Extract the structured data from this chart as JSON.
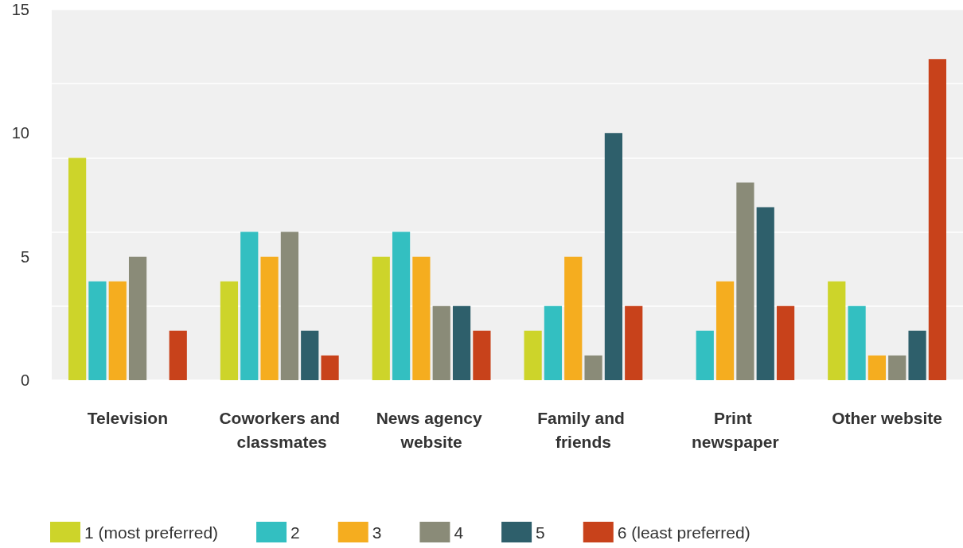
{
  "chart_data": {
    "type": "bar",
    "categories": [
      "Television",
      "Coworkers and classmates",
      "News agency website",
      "Family and friends",
      "Print newspaper",
      "Other website"
    ],
    "series": [
      {
        "name": "1 (most preferred)",
        "color": "#cdd42a",
        "values": [
          9,
          4,
          5,
          2,
          0,
          4
        ]
      },
      {
        "name": "2",
        "color": "#33bfc1",
        "values": [
          4,
          6,
          6,
          3,
          2,
          3
        ]
      },
      {
        "name": "3",
        "color": "#f5ad1f",
        "values": [
          4,
          5,
          5,
          5,
          4,
          1
        ]
      },
      {
        "name": "4",
        "color": "#8a8b78",
        "values": [
          5,
          6,
          3,
          1,
          8,
          1
        ]
      },
      {
        "name": "5",
        "color": "#2e5f6b",
        "values": [
          0,
          2,
          3,
          10,
          7,
          2
        ]
      },
      {
        "name": "6 (least preferred)",
        "color": "#c8421b",
        "values": [
          2,
          1,
          2,
          3,
          3,
          13
        ]
      }
    ],
    "ylim": [
      0,
      15
    ],
    "yticks": [
      0,
      5,
      10,
      15
    ],
    "grid": "y",
    "legend": "bottom"
  }
}
